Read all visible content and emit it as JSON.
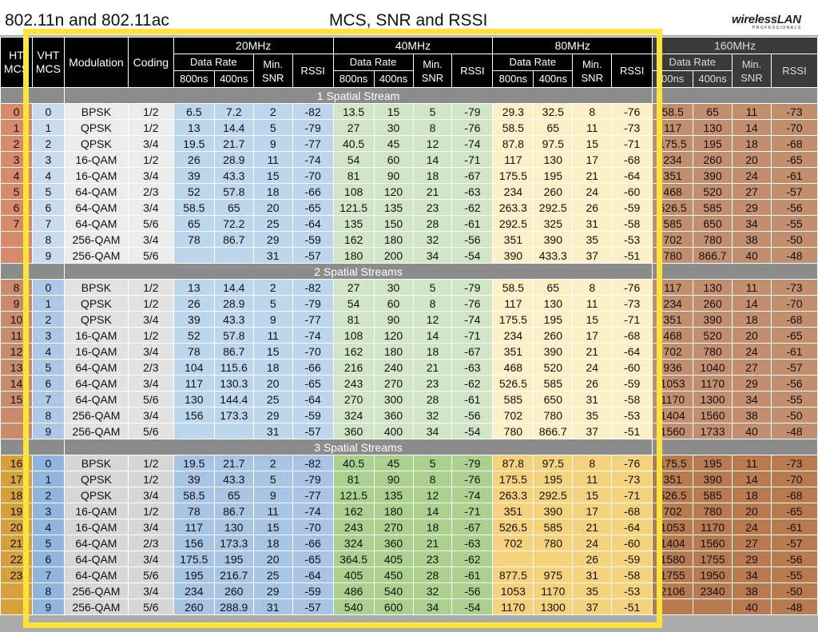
{
  "header": {
    "left_title": "802.11n and 802.11ac",
    "center_title": "MCS, SNR and RSSI",
    "logo_main": "wirelessLAN",
    "logo_sub": "PROFESSIONALS"
  },
  "columns": {
    "ht_top": "HT",
    "ht_bottom": "MCS",
    "vht_top": "VHT",
    "vht_bottom": "MCS",
    "modulation": "Modulation",
    "coding": "Coding",
    "bw_20": "20MHz",
    "bw_40": "40MHz",
    "bw_80": "80MHz",
    "bw_160": "160MHz",
    "data_rate": "Data Rate",
    "min": "Min.",
    "snr": "SNR",
    "rssi": "RSSI",
    "gi_800": "800ns",
    "gi_400": "400ns",
    "gi_800_cut": "00ns"
  },
  "colors": {
    "c20": "#bcd6ee",
    "c20_dark": "#a7c4e5",
    "c40": "#d1e6c6",
    "c40_dark": "#abd18f",
    "c80": "#fdefc6",
    "c80_dark": "#f6d27c",
    "c160": "#c28e6e",
    "c160_dark": "#b97a50",
    "ht1": "#d98a6a",
    "ht2": "#c98b6c",
    "ht3": "#d7a03b",
    "vht1": "#c9dbef",
    "vht2": "#adc8e6",
    "vht3": "#8fb4dd"
  },
  "sections": [
    {
      "label": "1 Spatial Stream",
      "rows": [
        {
          "ht": "0",
          "vht": "0",
          "mod": "BPSK",
          "cod": "1/2",
          "r20a": "6.5",
          "r20b": "7.2",
          "s20": "2",
          "rs20": "-82",
          "r40a": "13.5",
          "r40b": "15",
          "s40": "5",
          "rs40": "-79",
          "r80a": "29.3",
          "r80b": "32.5",
          "s80": "8",
          "rs80": "-76",
          "r160a": "58.5",
          "r160b": "65",
          "s160": "11",
          "rs160": "-73"
        },
        {
          "ht": "1",
          "vht": "1",
          "mod": "QPSK",
          "cod": "1/2",
          "r20a": "13",
          "r20b": "14.4",
          "s20": "5",
          "rs20": "-79",
          "r40a": "27",
          "r40b": "30",
          "s40": "8",
          "rs40": "-76",
          "r80a": "58.5",
          "r80b": "65",
          "s80": "11",
          "rs80": "-73",
          "r160a": "117",
          "r160b": "130",
          "s160": "14",
          "rs160": "-70"
        },
        {
          "ht": "2",
          "vht": "2",
          "mod": "QPSK",
          "cod": "3/4",
          "r20a": "19.5",
          "r20b": "21.7",
          "s20": "9",
          "rs20": "-77",
          "r40a": "40.5",
          "r40b": "45",
          "s40": "12",
          "rs40": "-74",
          "r80a": "87.8",
          "r80b": "97.5",
          "s80": "15",
          "rs80": "-71",
          "r160a": "175.5",
          "r160b": "195",
          "s160": "18",
          "rs160": "-68"
        },
        {
          "ht": "3",
          "vht": "3",
          "mod": "16-QAM",
          "cod": "1/2",
          "r20a": "26",
          "r20b": "28.9",
          "s20": "11",
          "rs20": "-74",
          "r40a": "54",
          "r40b": "60",
          "s40": "14",
          "rs40": "-71",
          "r80a": "117",
          "r80b": "130",
          "s80": "17",
          "rs80": "-68",
          "r160a": "234",
          "r160b": "260",
          "s160": "20",
          "rs160": "-65"
        },
        {
          "ht": "4",
          "vht": "4",
          "mod": "16-QAM",
          "cod": "3/4",
          "r20a": "39",
          "r20b": "43.3",
          "s20": "15",
          "rs20": "-70",
          "r40a": "81",
          "r40b": "90",
          "s40": "18",
          "rs40": "-67",
          "r80a": "175.5",
          "r80b": "195",
          "s80": "21",
          "rs80": "-64",
          "r160a": "351",
          "r160b": "390",
          "s160": "24",
          "rs160": "-61"
        },
        {
          "ht": "5",
          "vht": "5",
          "mod": "64-QAM",
          "cod": "2/3",
          "r20a": "52",
          "r20b": "57.8",
          "s20": "18",
          "rs20": "-66",
          "r40a": "108",
          "r40b": "120",
          "s40": "21",
          "rs40": "-63",
          "r80a": "234",
          "r80b": "260",
          "s80": "24",
          "rs80": "-60",
          "r160a": "468",
          "r160b": "520",
          "s160": "27",
          "rs160": "-57"
        },
        {
          "ht": "6",
          "vht": "6",
          "mod": "64-QAM",
          "cod": "3/4",
          "r20a": "58.5",
          "r20b": "65",
          "s20": "20",
          "rs20": "-65",
          "r40a": "121.5",
          "r40b": "135",
          "s40": "23",
          "rs40": "-62",
          "r80a": "263.3",
          "r80b": "292.5",
          "s80": "26",
          "rs80": "-59",
          "r160a": "526.5",
          "r160b": "585",
          "s160": "29",
          "rs160": "-56"
        },
        {
          "ht": "7",
          "vht": "7",
          "mod": "64-QAM",
          "cod": "5/6",
          "r20a": "65",
          "r20b": "72.2",
          "s20": "25",
          "rs20": "-64",
          "r40a": "135",
          "r40b": "150",
          "s40": "28",
          "rs40": "-61",
          "r80a": "292.5",
          "r80b": "325",
          "s80": "31",
          "rs80": "-58",
          "r160a": "585",
          "r160b": "650",
          "s160": "34",
          "rs160": "-55"
        },
        {
          "ht": "",
          "vht": "8",
          "mod": "256-QAM",
          "cod": "3/4",
          "r20a": "78",
          "r20b": "86.7",
          "s20": "29",
          "rs20": "-59",
          "r40a": "162",
          "r40b": "180",
          "s40": "32",
          "rs40": "-56",
          "r80a": "351",
          "r80b": "390",
          "s80": "35",
          "rs80": "-53",
          "r160a": "702",
          "r160b": "780",
          "s160": "38",
          "rs160": "-50"
        },
        {
          "ht": "",
          "vht": "9",
          "mod": "256-QAM",
          "cod": "5/6",
          "r20a": "",
          "r20b": "",
          "s20": "31",
          "rs20": "-57",
          "r40a": "180",
          "r40b": "200",
          "s40": "34",
          "rs40": "-54",
          "r80a": "390",
          "r80b": "433.3",
          "s80": "37",
          "rs80": "-51",
          "r160a": "780",
          "r160b": "866.7",
          "s160": "40",
          "rs160": "-48"
        }
      ]
    },
    {
      "label": "2 Spatial Streams",
      "rows": [
        {
          "ht": "8",
          "vht": "0",
          "mod": "BPSK",
          "cod": "1/2",
          "r20a": "13",
          "r20b": "14.4",
          "s20": "2",
          "rs20": "-82",
          "r40a": "27",
          "r40b": "30",
          "s40": "5",
          "rs40": "-79",
          "r80a": "58.5",
          "r80b": "65",
          "s80": "8",
          "rs80": "-76",
          "r160a": "117",
          "r160b": "130",
          "s160": "11",
          "rs160": "-73"
        },
        {
          "ht": "9",
          "vht": "1",
          "mod": "QPSK",
          "cod": "1/2",
          "r20a": "26",
          "r20b": "28.9",
          "s20": "5",
          "rs20": "-79",
          "r40a": "54",
          "r40b": "60",
          "s40": "8",
          "rs40": "-76",
          "r80a": "117",
          "r80b": "130",
          "s80": "11",
          "rs80": "-73",
          "r160a": "234",
          "r160b": "260",
          "s160": "14",
          "rs160": "-70"
        },
        {
          "ht": "10",
          "vht": "2",
          "mod": "QPSK",
          "cod": "3/4",
          "r20a": "39",
          "r20b": "43.3",
          "s20": "9",
          "rs20": "-77",
          "r40a": "81",
          "r40b": "90",
          "s40": "12",
          "rs40": "-74",
          "r80a": "175.5",
          "r80b": "195",
          "s80": "15",
          "rs80": "-71",
          "r160a": "351",
          "r160b": "390",
          "s160": "18",
          "rs160": "-68"
        },
        {
          "ht": "11",
          "vht": "3",
          "mod": "16-QAM",
          "cod": "1/2",
          "r20a": "52",
          "r20b": "57.8",
          "s20": "11",
          "rs20": "-74",
          "r40a": "108",
          "r40b": "120",
          "s40": "14",
          "rs40": "-71",
          "r80a": "234",
          "r80b": "260",
          "s80": "17",
          "rs80": "-68",
          "r160a": "468",
          "r160b": "520",
          "s160": "20",
          "rs160": "-65"
        },
        {
          "ht": "12",
          "vht": "4",
          "mod": "16-QAM",
          "cod": "3/4",
          "r20a": "78",
          "r20b": "86.7",
          "s20": "15",
          "rs20": "-70",
          "r40a": "162",
          "r40b": "180",
          "s40": "18",
          "rs40": "-67",
          "r80a": "351",
          "r80b": "390",
          "s80": "21",
          "rs80": "-64",
          "r160a": "702",
          "r160b": "780",
          "s160": "24",
          "rs160": "-61"
        },
        {
          "ht": "13",
          "vht": "5",
          "mod": "64-QAM",
          "cod": "2/3",
          "r20a": "104",
          "r20b": "115.6",
          "s20": "18",
          "rs20": "-66",
          "r40a": "216",
          "r40b": "240",
          "s40": "21",
          "rs40": "-63",
          "r80a": "468",
          "r80b": "520",
          "s80": "24",
          "rs80": "-60",
          "r160a": "936",
          "r160b": "1040",
          "s160": "27",
          "rs160": "-57"
        },
        {
          "ht": "14",
          "vht": "6",
          "mod": "64-QAM",
          "cod": "3/4",
          "r20a": "117",
          "r20b": "130.3",
          "s20": "20",
          "rs20": "-65",
          "r40a": "243",
          "r40b": "270",
          "s40": "23",
          "rs40": "-62",
          "r80a": "526.5",
          "r80b": "585",
          "s80": "26",
          "rs80": "-59",
          "r160a": "1053",
          "r160b": "1170",
          "s160": "29",
          "rs160": "-56"
        },
        {
          "ht": "15",
          "vht": "7",
          "mod": "64-QAM",
          "cod": "5/6",
          "r20a": "130",
          "r20b": "144.4",
          "s20": "25",
          "rs20": "-64",
          "r40a": "270",
          "r40b": "300",
          "s40": "28",
          "rs40": "-61",
          "r80a": "585",
          "r80b": "650",
          "s80": "31",
          "rs80": "-58",
          "r160a": "1170",
          "r160b": "1300",
          "s160": "34",
          "rs160": "-55"
        },
        {
          "ht": "",
          "vht": "8",
          "mod": "256-QAM",
          "cod": "3/4",
          "r20a": "156",
          "r20b": "173.3",
          "s20": "29",
          "rs20": "-59",
          "r40a": "324",
          "r40b": "360",
          "s40": "32",
          "rs40": "-56",
          "r80a": "702",
          "r80b": "780",
          "s80": "35",
          "rs80": "-53",
          "r160a": "1404",
          "r160b": "1560",
          "s160": "38",
          "rs160": "-50"
        },
        {
          "ht": "",
          "vht": "9",
          "mod": "256-QAM",
          "cod": "5/6",
          "r20a": "",
          "r20b": "",
          "s20": "31",
          "rs20": "-57",
          "r40a": "360",
          "r40b": "400",
          "s40": "34",
          "rs40": "-54",
          "r80a": "780",
          "r80b": "866.7",
          "s80": "37",
          "rs80": "-51",
          "r160a": "1560",
          "r160b": "1733",
          "s160": "40",
          "rs160": "-48"
        }
      ]
    },
    {
      "label": "3 Spatial Streams",
      "rows": [
        {
          "ht": "16",
          "vht": "0",
          "mod": "BPSK",
          "cod": "1/2",
          "r20a": "19.5",
          "r20b": "21.7",
          "s20": "2",
          "rs20": "-82",
          "r40a": "40.5",
          "r40b": "45",
          "s40": "5",
          "rs40": "-79",
          "r80a": "87.8",
          "r80b": "97.5",
          "s80": "8",
          "rs80": "-76",
          "r160a": "175.5",
          "r160b": "195",
          "s160": "11",
          "rs160": "-73"
        },
        {
          "ht": "17",
          "vht": "1",
          "mod": "QPSK",
          "cod": "1/2",
          "r20a": "39",
          "r20b": "43.3",
          "s20": "5",
          "rs20": "-79",
          "r40a": "81",
          "r40b": "90",
          "s40": "8",
          "rs40": "-76",
          "r80a": "175.5",
          "r80b": "195",
          "s80": "11",
          "rs80": "-73",
          "r160a": "351",
          "r160b": "390",
          "s160": "14",
          "rs160": "-70"
        },
        {
          "ht": "18",
          "vht": "2",
          "mod": "QPSK",
          "cod": "3/4",
          "r20a": "58.5",
          "r20b": "65",
          "s20": "9",
          "rs20": "-77",
          "r40a": "121.5",
          "r40b": "135",
          "s40": "12",
          "rs40": "-74",
          "r80a": "263.3",
          "r80b": "292.5",
          "s80": "15",
          "rs80": "-71",
          "r160a": "526.5",
          "r160b": "585",
          "s160": "18",
          "rs160": "-68"
        },
        {
          "ht": "19",
          "vht": "3",
          "mod": "16-QAM",
          "cod": "1/2",
          "r20a": "78",
          "r20b": "86.7",
          "s20": "11",
          "rs20": "-74",
          "r40a": "162",
          "r40b": "180",
          "s40": "14",
          "rs40": "-71",
          "r80a": "351",
          "r80b": "390",
          "s80": "17",
          "rs80": "-68",
          "r160a": "702",
          "r160b": "780",
          "s160": "20",
          "rs160": "-65"
        },
        {
          "ht": "20",
          "vht": "4",
          "mod": "16-QAM",
          "cod": "3/4",
          "r20a": "117",
          "r20b": "130",
          "s20": "15",
          "rs20": "-70",
          "r40a": "243",
          "r40b": "270",
          "s40": "18",
          "rs40": "-67",
          "r80a": "526.5",
          "r80b": "585",
          "s80": "21",
          "rs80": "-64",
          "r160a": "1053",
          "r160b": "1170",
          "s160": "24",
          "rs160": "-61"
        },
        {
          "ht": "21",
          "vht": "5",
          "mod": "64-QAM",
          "cod": "2/3",
          "r20a": "156",
          "r20b": "173.3",
          "s20": "18",
          "rs20": "-66",
          "r40a": "324",
          "r40b": "360",
          "s40": "21",
          "rs40": "-63",
          "r80a": "702",
          "r80b": "780",
          "s80": "24",
          "rs80": "-60",
          "r160a": "1404",
          "r160b": "1560",
          "s160": "27",
          "rs160": "-57"
        },
        {
          "ht": "22",
          "vht": "6",
          "mod": "64-QAM",
          "cod": "3/4",
          "r20a": "175.5",
          "r20b": "195",
          "s20": "20",
          "rs20": "-65",
          "r40a": "364.5",
          "r40b": "405",
          "s40": "23",
          "rs40": "-62",
          "r80a": "",
          "r80b": "",
          "s80": "26",
          "rs80": "-59",
          "r160a": "1580",
          "r160b": "1755",
          "s160": "29",
          "rs160": "-56"
        },
        {
          "ht": "23",
          "vht": "7",
          "mod": "64-QAM",
          "cod": "5/6",
          "r20a": "195",
          "r20b": "216.7",
          "s20": "25",
          "rs20": "-64",
          "r40a": "405",
          "r40b": "450",
          "s40": "28",
          "rs40": "-61",
          "r80a": "877.5",
          "r80b": "975",
          "s80": "31",
          "rs80": "-58",
          "r160a": "1755",
          "r160b": "1950",
          "s160": "34",
          "rs160": "-55"
        },
        {
          "ht": "",
          "vht": "8",
          "mod": "256-QAM",
          "cod": "3/4",
          "r20a": "234",
          "r20b": "260",
          "s20": "29",
          "rs20": "-59",
          "r40a": "486",
          "r40b": "540",
          "s40": "32",
          "rs40": "-56",
          "r80a": "1053",
          "r80b": "1170",
          "s80": "35",
          "rs80": "-53",
          "r160a": "2106",
          "r160b": "2340",
          "s160": "38",
          "rs160": "-50"
        },
        {
          "ht": "",
          "vht": "9",
          "mod": "256-QAM",
          "cod": "5/6",
          "r20a": "260",
          "r20b": "288.9",
          "s20": "31",
          "rs20": "-57",
          "r40a": "540",
          "r40b": "600",
          "s40": "34",
          "rs40": "-54",
          "r80a": "1170",
          "r80b": "1300",
          "s80": "37",
          "rs80": "-51",
          "r160a": "",
          "r160b": "",
          "s160": "40",
          "rs160": "-48"
        }
      ]
    }
  ]
}
